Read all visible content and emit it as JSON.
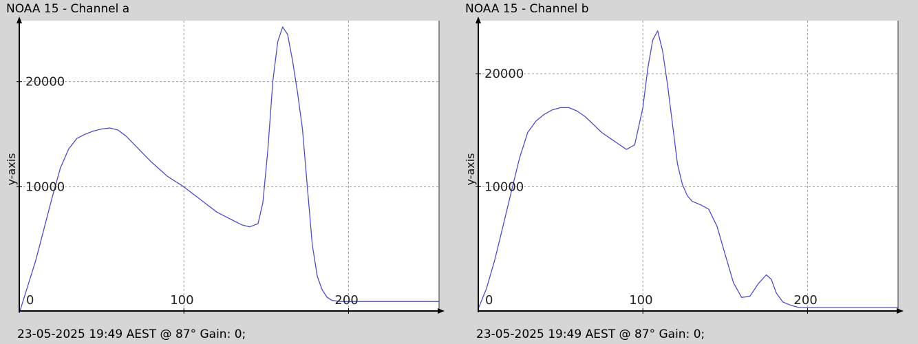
{
  "chart_data": [
    {
      "type": "line",
      "title": "NOAA 15 - Channel a",
      "footer": "23-05-2025 19:49 AEST @ 87° Gain: 0;",
      "ylabel": "y-axis",
      "xlabel": "",
      "xlim": [
        0,
        255
      ],
      "ylim": [
        -1800,
        25800
      ],
      "x_ticks": [
        0,
        100,
        200
      ],
      "y_ticks": [
        10000,
        20000
      ],
      "grid": true,
      "line_color": "#4b4bd4",
      "series": [
        {
          "x": [
            0,
            5,
            10,
            15,
            20,
            25,
            30,
            35,
            40,
            45,
            50,
            55,
            60,
            65,
            70,
            75,
            80,
            85,
            90,
            95,
            100,
            105,
            110,
            115,
            120,
            125,
            130,
            135,
            140,
            145,
            148,
            151,
            154,
            157,
            160,
            163,
            166,
            169,
            172,
            175,
            178,
            181,
            184,
            187,
            190,
            195,
            200,
            205,
            210,
            220,
            240,
            255
          ],
          "y": [
            -2000,
            500,
            3000,
            6000,
            9000,
            11800,
            13600,
            14600,
            15000,
            15300,
            15500,
            15600,
            15400,
            14800,
            14000,
            13200,
            12400,
            11700,
            11000,
            10500,
            10000,
            9400,
            8800,
            8200,
            7600,
            7200,
            6800,
            6400,
            6200,
            6500,
            8500,
            13500,
            20000,
            23800,
            25200,
            24500,
            22000,
            19000,
            15500,
            10000,
            4500,
            1500,
            200,
            -500,
            -800,
            -900,
            -900,
            -900,
            -900,
            -900,
            -900,
            -900
          ]
        }
      ]
    },
    {
      "type": "line",
      "title": "NOAA 15 - Channel b",
      "footer": "23-05-2025 19:49 AEST @ 87° Gain: 0;",
      "ylabel": "y-axis",
      "xlabel": "",
      "xlim": [
        0,
        255
      ],
      "ylim": [
        -1000,
        24700
      ],
      "x_ticks": [
        0,
        100,
        200
      ],
      "y_ticks": [
        10000,
        20000
      ],
      "grid": true,
      "line_color": "#4b4bd4",
      "series": [
        {
          "x": [
            0,
            5,
            10,
            15,
            20,
            25,
            30,
            35,
            40,
            45,
            50,
            55,
            60,
            65,
            70,
            75,
            80,
            85,
            90,
            95,
            100,
            103,
            106,
            109,
            112,
            115,
            118,
            121,
            124,
            127,
            130,
            135,
            140,
            145,
            150,
            155,
            160,
            165,
            170,
            175,
            178,
            181,
            185,
            190,
            195,
            200,
            210,
            230,
            255
          ],
          "y": [
            -800,
            1000,
            3500,
            6500,
            9500,
            12500,
            14800,
            15800,
            16400,
            16800,
            17000,
            17000,
            16700,
            16200,
            15500,
            14800,
            14300,
            13800,
            13300,
            13700,
            17000,
            20500,
            23000,
            23800,
            22000,
            19000,
            15500,
            12000,
            10200,
            9200,
            8700,
            8400,
            8000,
            6500,
            4000,
            1500,
            200,
            300,
            1400,
            2200,
            1800,
            600,
            -200,
            -500,
            -700,
            -700,
            -700,
            -700,
            -700
          ]
        }
      ]
    }
  ]
}
